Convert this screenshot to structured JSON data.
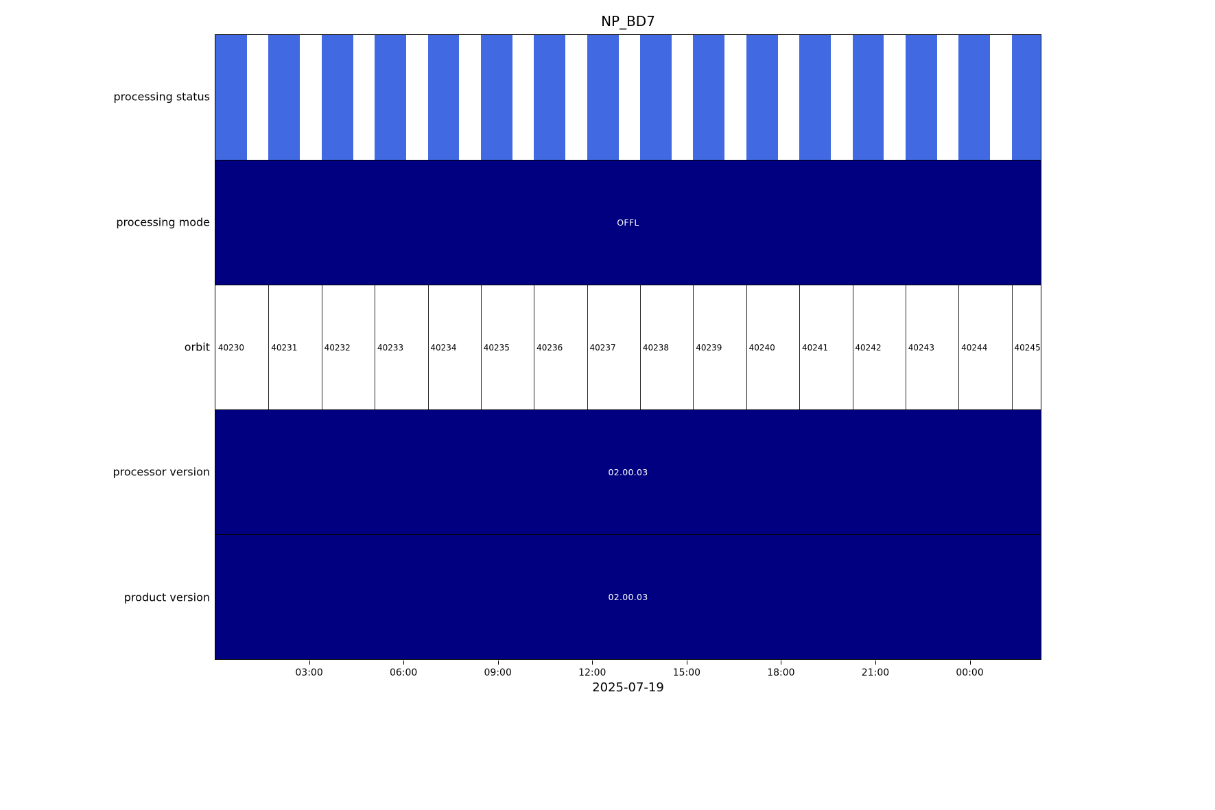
{
  "title": "NP_BD7",
  "chart_data": {
    "type": "timeline",
    "title": "NP_BD7",
    "xlabel": "2025-07-19",
    "x_ticks": [
      "03:00",
      "06:00",
      "09:00",
      "12:00",
      "15:00",
      "18:00",
      "21:00",
      "00:00"
    ],
    "colors": {
      "granule_blue": "#4169E1",
      "band_navy": "#000080",
      "band_text": "#FFFFFF",
      "background": "#FFFFFF"
    },
    "rows": [
      {
        "label": "processing status",
        "kind": "granules",
        "count": 16
      },
      {
        "label": "processing mode",
        "kind": "band",
        "text": "OFFL"
      },
      {
        "label": "orbit",
        "kind": "cells",
        "values": [
          "40230",
          "40231",
          "40232",
          "40233",
          "40234",
          "40235",
          "40236",
          "40237",
          "40238",
          "40239",
          "40240",
          "40241",
          "40242",
          "40243",
          "40244",
          "40245"
        ]
      },
      {
        "label": "processor version",
        "kind": "band",
        "text": "02.00.03"
      },
      {
        "label": "product version",
        "kind": "band",
        "text": "02.00.03"
      }
    ],
    "layout": {
      "orbit_pitch_pct": 6.432,
      "granule_width_pct": 3.82,
      "x_tick_step_pct": 11.4167,
      "grid": "off",
      "legend": "none",
      "row_order_top_to_bottom": [
        "processing status",
        "processing mode",
        "orbit",
        "processor version",
        "product version"
      ]
    }
  }
}
